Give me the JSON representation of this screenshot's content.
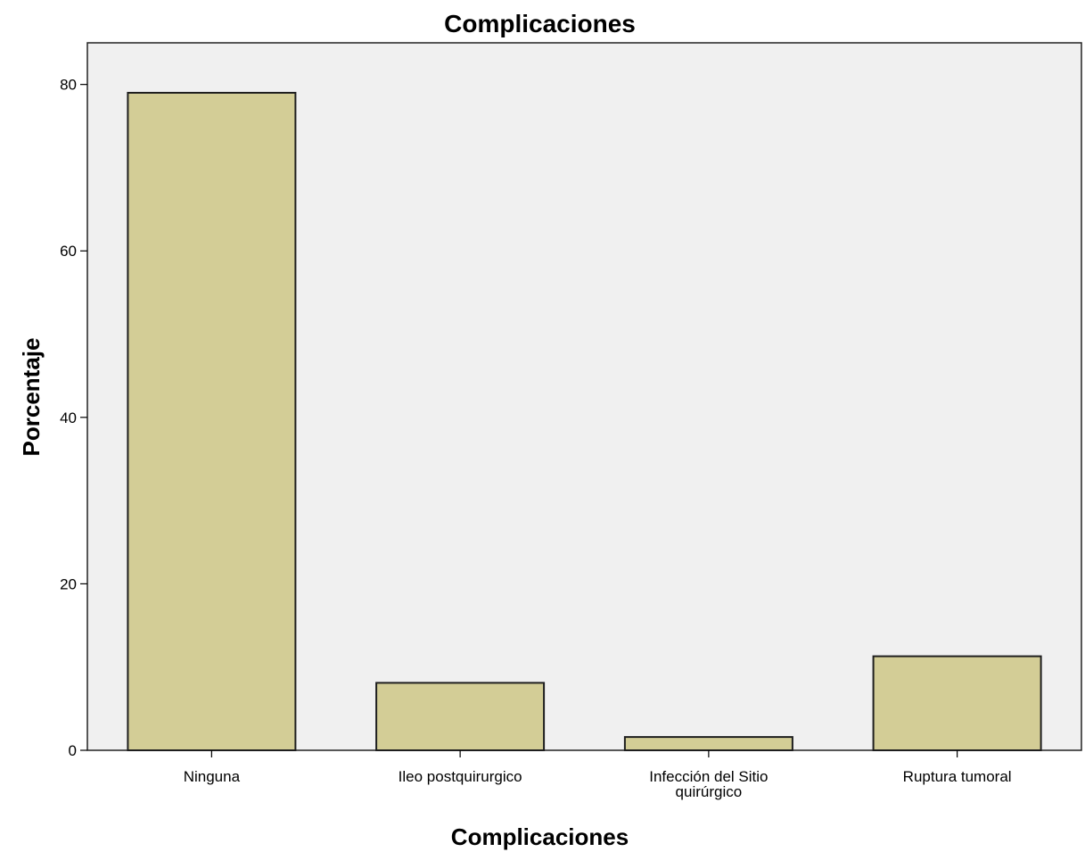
{
  "chart_data": {
    "type": "bar",
    "title": "Complicaciones",
    "xlabel": "Complicaciones",
    "ylabel": "Porcentaje",
    "categories": [
      [
        "Ninguna"
      ],
      [
        "Ileo postquirurgico"
      ],
      [
        "Infección del Sitio",
        "quirúrgico"
      ],
      [
        "Ruptura tumoral"
      ]
    ],
    "values": [
      79.0,
      8.1,
      1.6,
      11.3
    ],
    "yticks": [
      0,
      20,
      40,
      60,
      80
    ],
    "ylim": [
      0,
      85.0
    ],
    "grid": false,
    "legend": "none",
    "colors": {
      "bar_fill": "#d3cd96",
      "bar_stroke": "#1e1e1e",
      "plot_bg": "#f0f0f0",
      "frame": "#222222"
    }
  }
}
